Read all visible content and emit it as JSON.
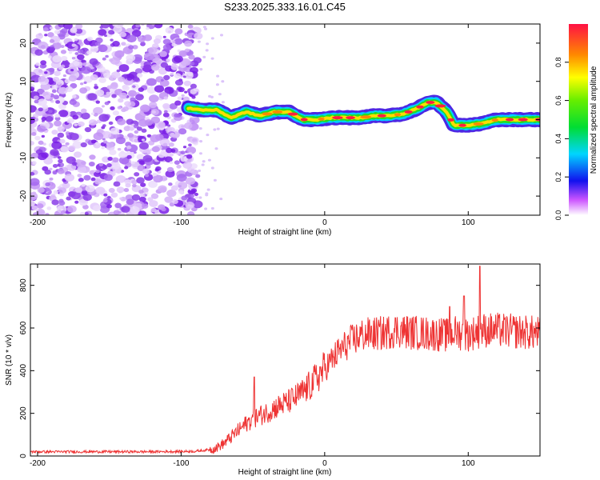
{
  "title": "S233.2025.333.16.01.C45",
  "chart_data": [
    {
      "type": "heatmap",
      "name": "spectrogram",
      "xlabel": "Height of straight line (km)",
      "ylabel": "Frequency (Hz)",
      "xlim": [
        -205,
        150
      ],
      "ylim": [
        -25,
        25
      ],
      "xticks": [
        -200,
        -100,
        0,
        100
      ],
      "xtick_labels": [
        "-200",
        "-100",
        "0",
        "100"
      ],
      "yticks": [
        20,
        10,
        0,
        -10,
        -20
      ],
      "ytick_labels": [
        "20",
        "10",
        "0",
        "-10",
        "-20"
      ],
      "noise_region": [
        -205,
        -88
      ],
      "ridge": {
        "x": [
          -95,
          -85,
          -75,
          -65,
          -55,
          -45,
          -35,
          -25,
          -15,
          -5,
          5,
          15,
          25,
          35,
          45,
          55,
          65,
          72,
          78,
          85,
          90,
          100,
          110,
          120,
          130,
          140,
          150
        ],
        "freq": [
          3,
          2.5,
          2.5,
          0.5,
          2,
          1,
          2,
          2,
          0,
          0,
          0.5,
          0.5,
          0.5,
          1,
          1,
          1.5,
          3,
          4.5,
          4.5,
          2,
          -1.5,
          -1.5,
          -1,
          0,
          0,
          0,
          0
        ]
      },
      "colorbar": {
        "label": "Normalized spectral amplitude",
        "range": [
          0,
          1
        ],
        "ticks": [
          0.0,
          0.2,
          0.4,
          0.6,
          0.8
        ],
        "tick_labels": [
          "0.0",
          "0.2",
          "0.4",
          "0.6",
          "0.8"
        ]
      }
    },
    {
      "type": "line",
      "name": "snr",
      "xlabel": "Height of straight line (km)",
      "ylabel": "SNR (10 * v/v)",
      "xlim": [
        -205,
        150
      ],
      "ylim": [
        0,
        900
      ],
      "xticks": [
        -200,
        -100,
        0,
        100
      ],
      "xtick_labels": [
        "-200",
        "-100",
        "0",
        "100"
      ],
      "yticks": [
        0,
        200,
        400,
        600,
        800
      ],
      "ytick_labels": [
        "0",
        "200",
        "400",
        "600",
        "800"
      ],
      "series": [
        {
          "name": "SNR",
          "color": "#ee3333",
          "x": [
            -205,
            -180,
            -150,
            -120,
            -90,
            -80,
            -75,
            -70,
            -65,
            -60,
            -55,
            -50,
            -45,
            -40,
            -35,
            -30,
            -25,
            -20,
            -15,
            -10,
            -5,
            0,
            5,
            10,
            15,
            20,
            25,
            30,
            40,
            50,
            60,
            70,
            80,
            85,
            90,
            95,
            100,
            110,
            120,
            130,
            140,
            150
          ],
          "values": [
            20,
            20,
            20,
            20,
            22,
            30,
            40,
            60,
            90,
            120,
            150,
            175,
            190,
            205,
            225,
            240,
            255,
            275,
            300,
            330,
            370,
            410,
            450,
            490,
            520,
            545,
            565,
            570,
            575,
            590,
            580,
            575,
            570,
            565,
            580,
            575,
            570,
            590,
            590,
            585,
            580,
            575
          ]
        }
      ],
      "spikes": [
        {
          "x": -49,
          "value": 370
        },
        {
          "x": 87,
          "value": 700
        },
        {
          "x": 108,
          "value": 890
        },
        {
          "x": 97,
          "value": 750
        }
      ]
    }
  ],
  "colors": {
    "line": "#ee3333",
    "noise": "#8a2be2"
  }
}
